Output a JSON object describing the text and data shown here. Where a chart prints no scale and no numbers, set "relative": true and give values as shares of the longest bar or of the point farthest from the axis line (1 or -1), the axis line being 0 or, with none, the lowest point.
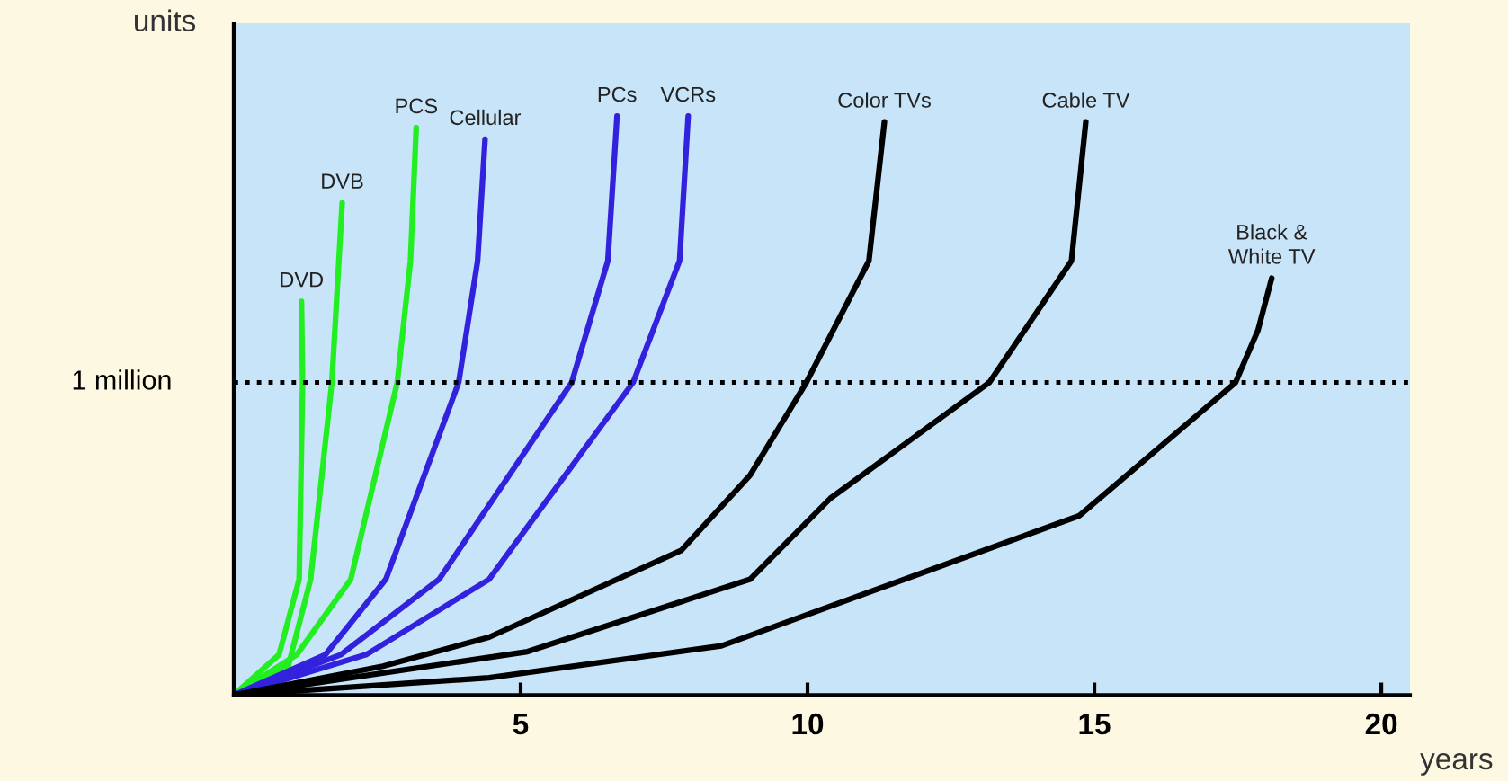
{
  "chart_data": {
    "type": "line",
    "relative": true,
    "xlabel": "years",
    "ylabel": "units",
    "xlim": [
      0,
      20.5
    ],
    "xticks": [
      5,
      10,
      15,
      20
    ],
    "grid": false,
    "legend": false,
    "marker": "none",
    "line_style": "solid",
    "ref_lines": [
      {
        "axis": "y",
        "value": 0.54,
        "label": "1 million",
        "color": "#000000",
        "line_style": "dotted"
      }
    ],
    "series": [
      {
        "name": "DVD",
        "color": "#22ee22",
        "x": [
          0,
          0.79,
          1.14,
          1.2,
          1.18
        ],
        "values": [
          0,
          0.07,
          0.2,
          0.54,
          0.68
        ]
      },
      {
        "name": "DVB",
        "color": "#22ee22",
        "x": [
          0,
          0.95,
          1.34,
          1.71,
          1.89
        ],
        "values": [
          0,
          0.05,
          0.2,
          0.54,
          0.85
        ]
      },
      {
        "name": "PCS",
        "color": "#22ee22",
        "x": [
          0,
          1.1,
          2.04,
          2.85,
          3.08,
          3.18
        ],
        "values": [
          0,
          0.07,
          0.2,
          0.54,
          0.75,
          0.98
        ]
      },
      {
        "name": "Cellular",
        "color": "#3322dd",
        "x": [
          0,
          1.6,
          2.65,
          3.92,
          4.25,
          4.38
        ],
        "values": [
          0,
          0.07,
          0.2,
          0.54,
          0.75,
          0.96
        ]
      },
      {
        "name": "PCs",
        "color": "#3322dd",
        "x": [
          0,
          1.87,
          3.58,
          5.89,
          6.52,
          6.68
        ],
        "values": [
          0,
          0.07,
          0.2,
          0.54,
          0.75,
          1.0
        ]
      },
      {
        "name": "VCRs",
        "color": "#3322dd",
        "x": [
          0,
          2.31,
          4.45,
          6.96,
          7.77,
          7.92
        ],
        "values": [
          0,
          0.07,
          0.2,
          0.54,
          0.75,
          1.0
        ]
      },
      {
        "name": "Color TVs",
        "color": "#000000",
        "x": [
          0,
          2.6,
          4.45,
          7.8,
          9.0,
          9.98,
          11.07,
          11.34
        ],
        "values": [
          0,
          0.05,
          0.1,
          0.25,
          0.38,
          0.54,
          0.75,
          0.99
        ]
      },
      {
        "name": "Cable TV",
        "color": "#000000",
        "x": [
          0,
          5.12,
          9.0,
          10.4,
          13.17,
          14.6,
          14.85
        ],
        "values": [
          0,
          0.075,
          0.2,
          0.34,
          0.54,
          0.75,
          0.99
        ]
      },
      {
        "name": "Black &\nWhite TV",
        "color": "#000000",
        "x": [
          0,
          4.45,
          8.5,
          14.74,
          17.46,
          17.85,
          18.09
        ],
        "values": [
          0,
          0.03,
          0.085,
          0.31,
          0.54,
          0.63,
          0.72
        ]
      }
    ]
  }
}
